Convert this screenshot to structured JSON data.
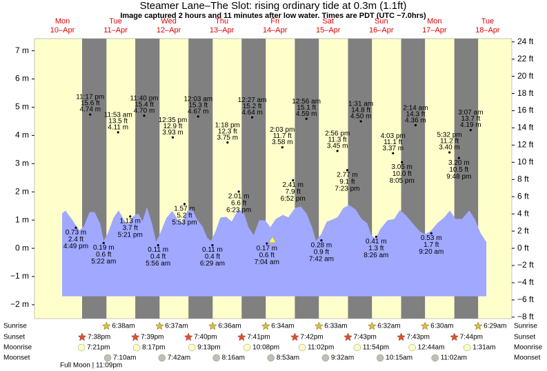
{
  "chart_data": {
    "type": "area",
    "title": "Steamer Lane–The Slot: rising  ordinary tide at 0.3m (1.1ft)",
    "subtitle": "Image captured 2 hours and 11 minutes after low water. Times are PDT (UTC −7.0hrs)",
    "background": "#ffffcc",
    "night_color": "#808080",
    "color": "#a0a8ff",
    "fill_floor": -1.7,
    "xlim": [
      -1.87,
      213.7
    ],
    "ylim": [
      -2.49,
      7.43
    ],
    "yticks": [
      {
        "value": 7,
        "label": "7 m"
      },
      {
        "value": 6,
        "label": "6 m"
      },
      {
        "value": 5,
        "label": "5 m"
      },
      {
        "value": 4,
        "label": "4 m"
      },
      {
        "value": 3,
        "label": "3 m"
      },
      {
        "value": 2,
        "label": "2 m"
      },
      {
        "value": 1,
        "label": "1 m"
      },
      {
        "value": 0,
        "label": "0 m"
      },
      {
        "value": -1,
        "label": "−1 m"
      },
      {
        "value": -2,
        "label": "−2 m"
      }
    ],
    "y2lim": [
      -8.17,
      24.38
    ],
    "y2ticks": [
      {
        "value": 24,
        "label": "24 ft"
      },
      {
        "value": 22,
        "label": "22 ft"
      },
      {
        "value": 20,
        "label": "20 ft"
      },
      {
        "value": 18,
        "label": "18 ft"
      },
      {
        "value": 16,
        "label": "16 ft"
      },
      {
        "value": 14,
        "label": "14 ft"
      },
      {
        "value": 12,
        "label": "12 ft"
      },
      {
        "value": 10,
        "label": "10 ft"
      },
      {
        "value": 8,
        "label": "8 ft"
      },
      {
        "value": 6,
        "label": "6 ft"
      },
      {
        "value": 4,
        "label": "4 ft"
      },
      {
        "value": 2,
        "label": "2 ft"
      },
      {
        "value": 0,
        "label": "0 ft"
      },
      {
        "value": -2,
        "label": "−2 ft"
      },
      {
        "value": -4,
        "label": "−4 ft"
      },
      {
        "value": -6,
        "label": "−6 ft"
      },
      {
        "value": -8,
        "label": "−8 ft"
      }
    ],
    "x": [
      10.6,
      12.1,
      15.3,
      18.4,
      20.6,
      23.1,
      25.2,
      27.7,
      29.3,
      31.2,
      34.0,
      36.1,
      38.6,
      40.5,
      42.7,
      44.9,
      47.0,
      48.9,
      51.1,
      53.0,
      55.1,
      57.9,
      60.4,
      62.9,
      64.8,
      67.3,
      69.2,
      71.3,
      73.8,
      76.0,
      77.9,
      80.1,
      82.2,
      84.7,
      87.2,
      90.0,
      92.2,
      94.7,
      97.2,
      99.7,
      102.2,
      104.7,
      107.2,
      110.3,
      112.8,
      115.9,
      118.4,
      120.9,
      123.4,
      125.2,
      127.7,
      130.2,
      133.3,
      135.2,
      137.7,
      140.2,
      143.0,
      145.8,
      148.3,
      150.2,
      152.3,
      154.5,
      157.6,
      160.7,
      163.2,
      165.7,
      168.8,
      172.0,
      174.5,
      177.0,
      180.1,
      183.2,
      185.7,
      188.2,
      191.3,
      194.4,
      196.9,
      199.4,
      202.2
    ],
    "values": [
      1.22,
      1.32,
      0.98,
      0.61,
      0.78,
      1.27,
      1.27,
      0.86,
      0.24,
      0.49,
      1.08,
      1.32,
      0.98,
      0.83,
      1.12,
      1.22,
      0.93,
      1.42,
      0.86,
      0.2,
      0.54,
      1.08,
      1.3,
      0.98,
      0.88,
      1.32,
      1.39,
      1.03,
      0.78,
      0.37,
      0.24,
      0.61,
      1.08,
      1.1,
      0.93,
      1.32,
      1.34,
      0.73,
      0.44,
      0.98,
      0.98,
      0.73,
      1.03,
      1.17,
      1.08,
      1.42,
      1.47,
      1.22,
      0.73,
      0.24,
      0.49,
      0.93,
      1.03,
      1.1,
      1.42,
      1.52,
      1.37,
      1.03,
      0.88,
      0.44,
      0.34,
      0.68,
      0.98,
      1.03,
      1.34,
      1.17,
      0.88,
      0.59,
      0.49,
      0.59,
      0.88,
      1.08,
      1.32,
      1.03,
      1.03,
      1.32,
      1.03,
      0.54,
      0.2
    ],
    "now": {
      "x": 105.6,
      "y": 0.3,
      "color": "#ffff40"
    },
    "astro_rows": [
      "Sunrise",
      "Sunset",
      "Moonrise",
      "Moonset"
    ],
    "full_moon": "Full Moon | 11:09pm",
    "days": [
      {
        "name": "Mon",
        "date": "10–Apr",
        "astro": [
          null,
          "7:38pm",
          "7:21pm",
          null
        ],
        "tides": [
          {
            "time": "4:49 pm",
            "value": 0.73,
            "value_label": "0.73 m",
            "ft_label": "2.4 ft"
          },
          {
            "time": "11:17 pm",
            "value": 4.74,
            "value_label": "4.74 m",
            "ft_label": "15.6 ft"
          }
        ]
      },
      {
        "name": "Tue",
        "date": "11–Apr",
        "astro": [
          "6:38am",
          "7:39pm",
          "8:17pm",
          "7:10am"
        ],
        "tides": [
          {
            "time": "5:22 am",
            "value": 0.19,
            "value_label": "0.19 m",
            "ft_label": "0.6 ft"
          },
          {
            "time": "11:53 am",
            "value": 4.11,
            "value_label": "4.11 m",
            "ft_label": "13.5 ft"
          },
          {
            "time": "5:21 pm",
            "value": 1.13,
            "value_label": "1.13 m",
            "ft_label": "3.7 ft"
          },
          {
            "time": "11:40 pm",
            "value": 4.7,
            "value_label": "4.70 m",
            "ft_label": "15.4 ft"
          }
        ]
      },
      {
        "name": "Wed",
        "date": "12–Apr",
        "astro": [
          "6:37am",
          "7:40pm",
          "9:13pm",
          "7:42am"
        ],
        "tides": [
          {
            "time": "5:56 am",
            "value": 0.11,
            "value_label": "0.11 m",
            "ft_label": "0.4 ft"
          },
          {
            "time": "12:35 pm",
            "value": 3.93,
            "value_label": "3.93 m",
            "ft_label": "12.9 ft"
          },
          {
            "time": "5:53 pm",
            "value": 1.57,
            "value_label": "1.57 m",
            "ft_label": "5.2 ft"
          }
        ]
      },
      {
        "name": "Thu",
        "date": "13–Apr",
        "astro": [
          "6:36am",
          "7:41pm",
          "10:08pm",
          "8:16am"
        ],
        "tides": [
          {
            "time": "12:03 am",
            "value": 4.67,
            "value_label": "4.67 m",
            "ft_label": "15.3 ft"
          },
          {
            "time": "6:29 am",
            "value": 0.11,
            "value_label": "0.11 m",
            "ft_label": "0.4 ft"
          },
          {
            "time": "1:18 pm",
            "value": 3.75,
            "value_label": "3.75 m",
            "ft_label": "12.3 ft"
          },
          {
            "time": "6:23 pm",
            "value": 2.01,
            "value_label": "2.01 m",
            "ft_label": "6.6 ft"
          }
        ]
      },
      {
        "name": "Fri",
        "date": "14–Apr",
        "astro": [
          "6:34am",
          "7:42pm",
          "11:02pm",
          "8:53am"
        ],
        "tides": [
          {
            "time": "12:27 am",
            "value": 4.64,
            "value_label": "4.64 m",
            "ft_label": "15.2 ft"
          },
          {
            "time": "7:04 am",
            "value": 0.17,
            "value_label": "0.17 m",
            "ft_label": "0.6 ft"
          },
          {
            "time": "2:03 pm",
            "value": 3.58,
            "value_label": "3.58 m",
            "ft_label": "11.7 ft"
          },
          {
            "time": "6:52 pm",
            "value": 2.41,
            "value_label": "2.41 m",
            "ft_label": "7.9 ft"
          }
        ]
      },
      {
        "name": "Sat",
        "date": "15–Apr",
        "astro": [
          "6:33am",
          "7:43pm",
          "11:54pm",
          "9:32am"
        ],
        "tides": [
          {
            "time": "12:56 am",
            "value": 4.59,
            "value_label": "4.59 m",
            "ft_label": "15.1 ft"
          },
          {
            "time": "7:42 am",
            "value": 0.28,
            "value_label": "0.28 m",
            "ft_label": "0.9 ft"
          },
          {
            "time": "2:56 pm",
            "value": 3.45,
            "value_label": "3.45 m",
            "ft_label": "11.3 ft"
          },
          {
            "time": "7:23 pm",
            "value": 2.77,
            "value_label": "2.77 m",
            "ft_label": "9.1 ft"
          }
        ]
      },
      {
        "name": "Sun",
        "date": "16–Apr",
        "astro": [
          "6:32am",
          "7:43pm",
          null,
          "10:15am"
        ],
        "tides": [
          {
            "time": "1:31 am",
            "value": 4.5,
            "value_label": "4.50 m",
            "ft_label": "14.8 ft"
          },
          {
            "time": "8:26 am",
            "value": 0.41,
            "value_label": "0.41 m",
            "ft_label": "1.3 ft"
          },
          {
            "time": "4:03 pm",
            "value": 3.37,
            "value_label": "3.37 m",
            "ft_label": "11.1 ft"
          },
          {
            "time": "8:05 pm",
            "value": 3.05,
            "value_label": "3.05 m",
            "ft_label": "10.0 ft"
          }
        ]
      },
      {
        "name": "Mon",
        "date": "17–Apr",
        "astro": [
          "6:30am",
          "7:44pm",
          "12:44am",
          "11:02am"
        ],
        "tides": [
          {
            "time": "2:14 am",
            "value": 4.36,
            "value_label": "4.36 m",
            "ft_label": "14.3 ft"
          },
          {
            "time": "9:20 am",
            "value": 0.53,
            "value_label": "0.53 m",
            "ft_label": "1.7 ft"
          },
          {
            "time": "5:32 pm",
            "value": 3.4,
            "value_label": "3.40 m",
            "ft_label": "11.2 ft"
          },
          {
            "time": "9:48 pm",
            "value": 3.2,
            "value_label": "3.20 m",
            "ft_label": "10.5 ft"
          }
        ]
      },
      {
        "name": "Tue",
        "date": "18–Apr",
        "astro": [
          "6:29am",
          null,
          "1:31am",
          null
        ],
        "tides": [
          {
            "time": "3:07 am",
            "value": 4.19,
            "value_label": "4.19 m",
            "ft_label": "13.7 ft"
          }
        ]
      }
    ]
  }
}
